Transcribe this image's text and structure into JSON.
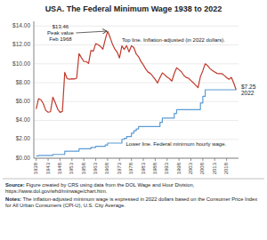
{
  "chart_data": {
    "type": "line",
    "title": "USA. The Federal Minimum Wage 1938 to 2022",
    "x": [
      1938,
      1939,
      1940,
      1941,
      1942,
      1943,
      1944,
      1945,
      1946,
      1947,
      1948,
      1949,
      1950,
      1951,
      1952,
      1953,
      1954,
      1955,
      1956,
      1957,
      1958,
      1959,
      1960,
      1961,
      1962,
      1963,
      1964,
      1965,
      1966,
      1967,
      1968,
      1969,
      1970,
      1971,
      1972,
      1973,
      1974,
      1975,
      1976,
      1977,
      1978,
      1979,
      1980,
      1981,
      1982,
      1983,
      1984,
      1985,
      1986,
      1987,
      1988,
      1989,
      1990,
      1991,
      1992,
      1993,
      1994,
      1995,
      1996,
      1997,
      1998,
      1999,
      2000,
      2001,
      2002,
      2003,
      2004,
      2005,
      2006,
      2007,
      2008,
      2009,
      2010,
      2011,
      2012,
      2013,
      2014,
      2015,
      2016,
      2017,
      2018,
      2019,
      2020,
      2021,
      2022
    ],
    "series": [
      {
        "name": "Lower line. Federal minimum hourly wage.",
        "color": "#5b9bd5",
        "line_style": "step",
        "values": [
          0.25,
          0.3,
          0.3,
          0.3,
          0.3,
          0.3,
          0.3,
          0.4,
          0.4,
          0.4,
          0.4,
          0.4,
          0.75,
          0.75,
          0.75,
          0.75,
          0.75,
          0.75,
          1.0,
          1.0,
          1.0,
          1.0,
          1.0,
          1.15,
          1.15,
          1.25,
          1.25,
          1.25,
          1.25,
          1.4,
          1.6,
          1.6,
          1.6,
          1.6,
          1.6,
          1.6,
          2.0,
          2.1,
          2.3,
          2.3,
          2.65,
          2.9,
          3.1,
          3.35,
          3.35,
          3.35,
          3.35,
          3.35,
          3.35,
          3.35,
          3.35,
          3.35,
          3.8,
          4.25,
          4.25,
          4.25,
          4.25,
          4.25,
          4.75,
          5.15,
          5.15,
          5.15,
          5.15,
          5.15,
          5.15,
          5.15,
          5.15,
          5.15,
          5.15,
          5.85,
          6.55,
          7.25,
          7.25,
          7.25,
          7.25,
          7.25,
          7.25,
          7.25,
          7.25,
          7.25,
          7.25,
          7.25,
          7.25,
          7.25,
          7.25
        ]
      },
      {
        "name": "Top line. Inflation-adjusted (in 2022 dollars).",
        "color": "#c0392b",
        "line_style": "solid",
        "values": [
          5.21,
          6.31,
          6.19,
          5.77,
          5.07,
          4.87,
          4.92,
          6.47,
          5.88,
          5.22,
          4.86,
          4.96,
          9.09,
          8.43,
          8.37,
          8.42,
          8.39,
          8.47,
          11.08,
          10.65,
          10.26,
          10.24,
          10.04,
          11.42,
          11.33,
          12.13,
          12.03,
          11.85,
          11.55,
          12.56,
          13.46,
          12.82,
          12.11,
          11.58,
          11.25,
          10.62,
          11.9,
          11.53,
          11.92,
          11.26,
          11.91,
          11.73,
          11.06,
          10.75,
          10.25,
          9.89,
          9.45,
          9.12,
          8.98,
          8.68,
          8.35,
          7.97,
          8.55,
          9.03,
          8.84,
          8.59,
          8.43,
          8.17,
          8.97,
          9.58,
          9.38,
          9.16,
          8.78,
          8.56,
          8.47,
          8.23,
          8.0,
          7.73,
          7.47,
          8.65,
          9.26,
          10.0,
          9.81,
          9.5,
          9.29,
          9.14,
          8.98,
          8.96,
          8.97,
          8.77,
          8.55,
          8.36,
          8.56,
          7.96,
          7.25
        ]
      }
    ],
    "xlim": [
      1937,
      2023
    ],
    "xticks": [
      1938,
      1943,
      1948,
      1953,
      1958,
      1963,
      1968,
      1973,
      1978,
      1983,
      1988,
      1993,
      1998,
      2003,
      2008,
      2013,
      2018
    ],
    "ylim": [
      0,
      14.5
    ],
    "yticks": [
      {
        "value": 0,
        "label": "$0.00"
      },
      {
        "value": 2,
        "label": "$2.00"
      },
      {
        "value": 4,
        "label": "$4.00"
      },
      {
        "value": 6,
        "label": "$6.00"
      },
      {
        "value": 8,
        "label": "$8.00"
      },
      {
        "value": 10,
        "label": "$10.00"
      },
      {
        "value": 12,
        "label": "$12.00"
      },
      {
        "value": 14,
        "label": "$14.00"
      }
    ],
    "grid": true,
    "annotations": [
      {
        "text": "$13.46\nPeak value\nFeb 1968",
        "x": 1968,
        "y": 13.46
      },
      {
        "text": "$7.25\n2022"
      }
    ],
    "footnotes": [
      {
        "label": "Source:",
        "text": "Figure created by CRS using data from the DOL Wage and Hour Division, https://www.dol.gov/whd/minwage/chart.htm."
      },
      {
        "label": "Notes:",
        "text": "The inflation-adjusted minimum wage is expressed in 2022 dollars based on the Consumer Price Index for All Urban Consumers (CPI-U), U.S. City Average."
      }
    ]
  }
}
